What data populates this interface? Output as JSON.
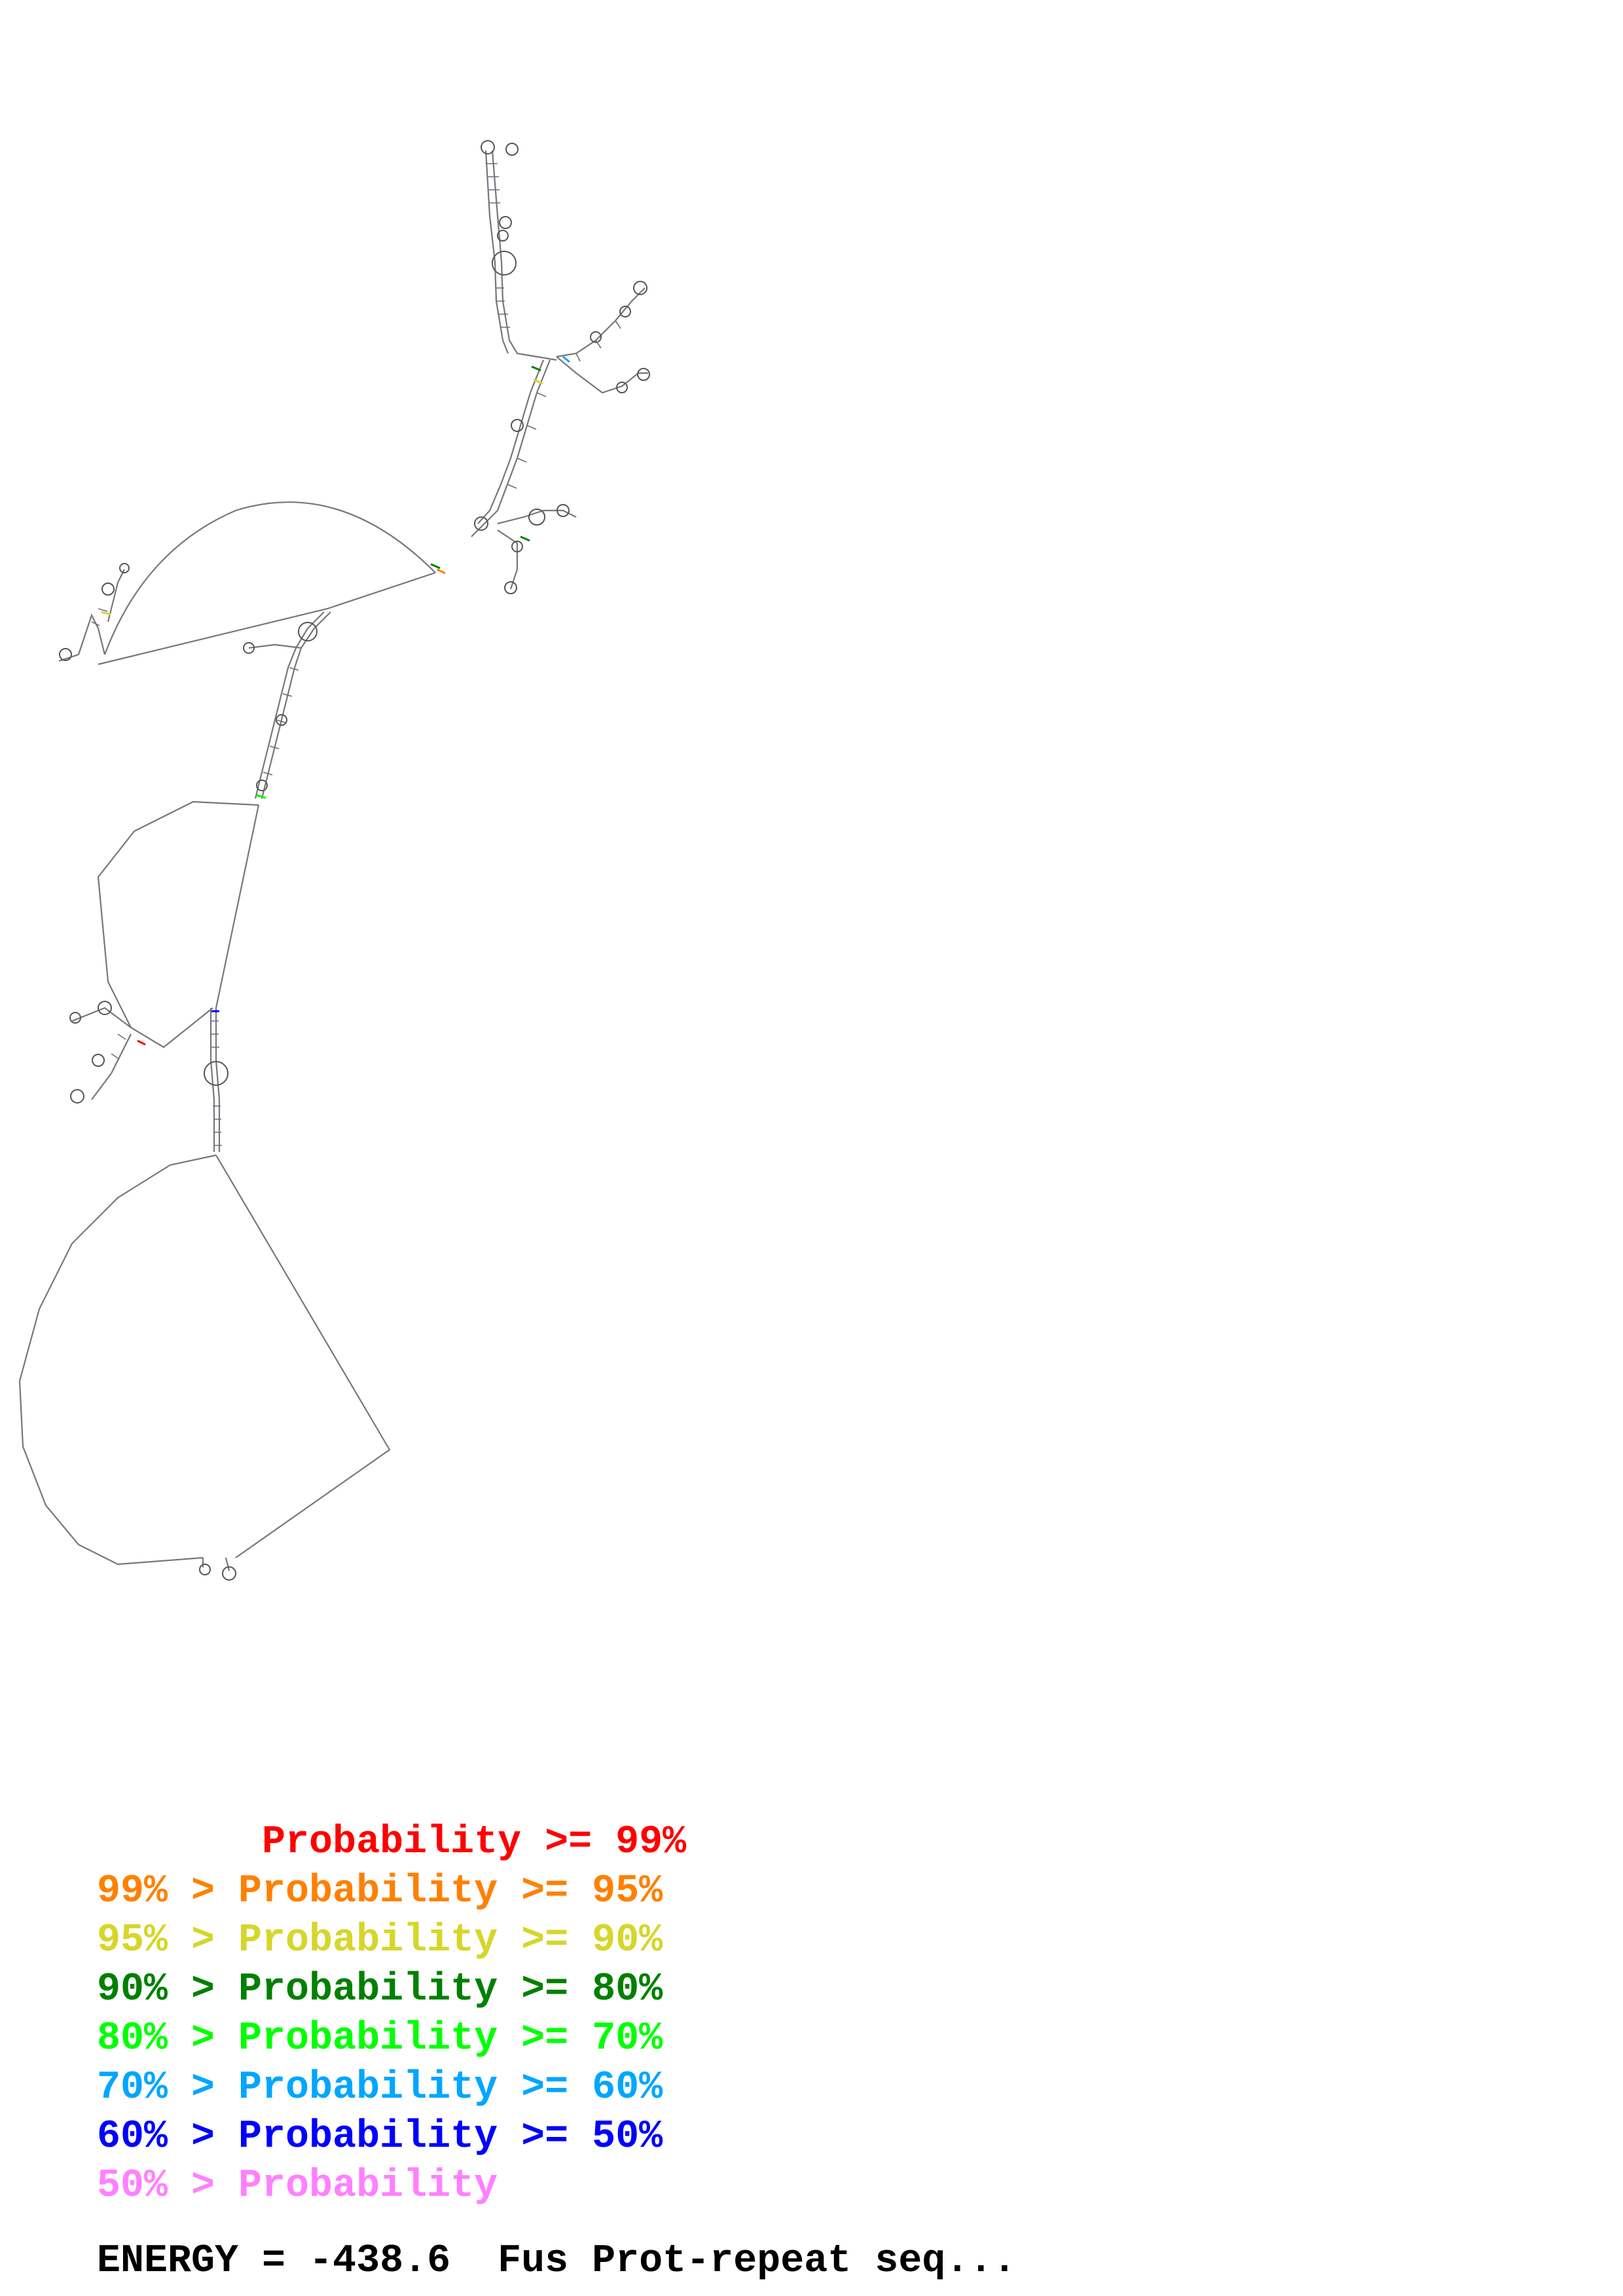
{
  "legend": [
    {
      "text": "       Probability >= 99%",
      "color": "#ff0000"
    },
    {
      "text": "99% > Probability >= 95%",
      "color": "#ff8000"
    },
    {
      "text": "95% > Probability >= 90%",
      "color": "#d6d62a"
    },
    {
      "text": "90% > Probability >= 80%",
      "color": "#008000"
    },
    {
      "text": "80% > Probability >= 70%",
      "color": "#00ff00"
    },
    {
      "text": "70% > Probability >= 60%",
      "color": "#00a6ff"
    },
    {
      "text": "60% > Probability >= 50%",
      "color": "#0000ff"
    },
    {
      "text": "50% > Probability",
      "color": "#ff80ff"
    }
  ],
  "footer": {
    "energy_text": "ENERGY = -438.6  Fus Prot-repeat seq..."
  },
  "colors": {
    "backbone": "#777777",
    "background": "#ffffff"
  }
}
